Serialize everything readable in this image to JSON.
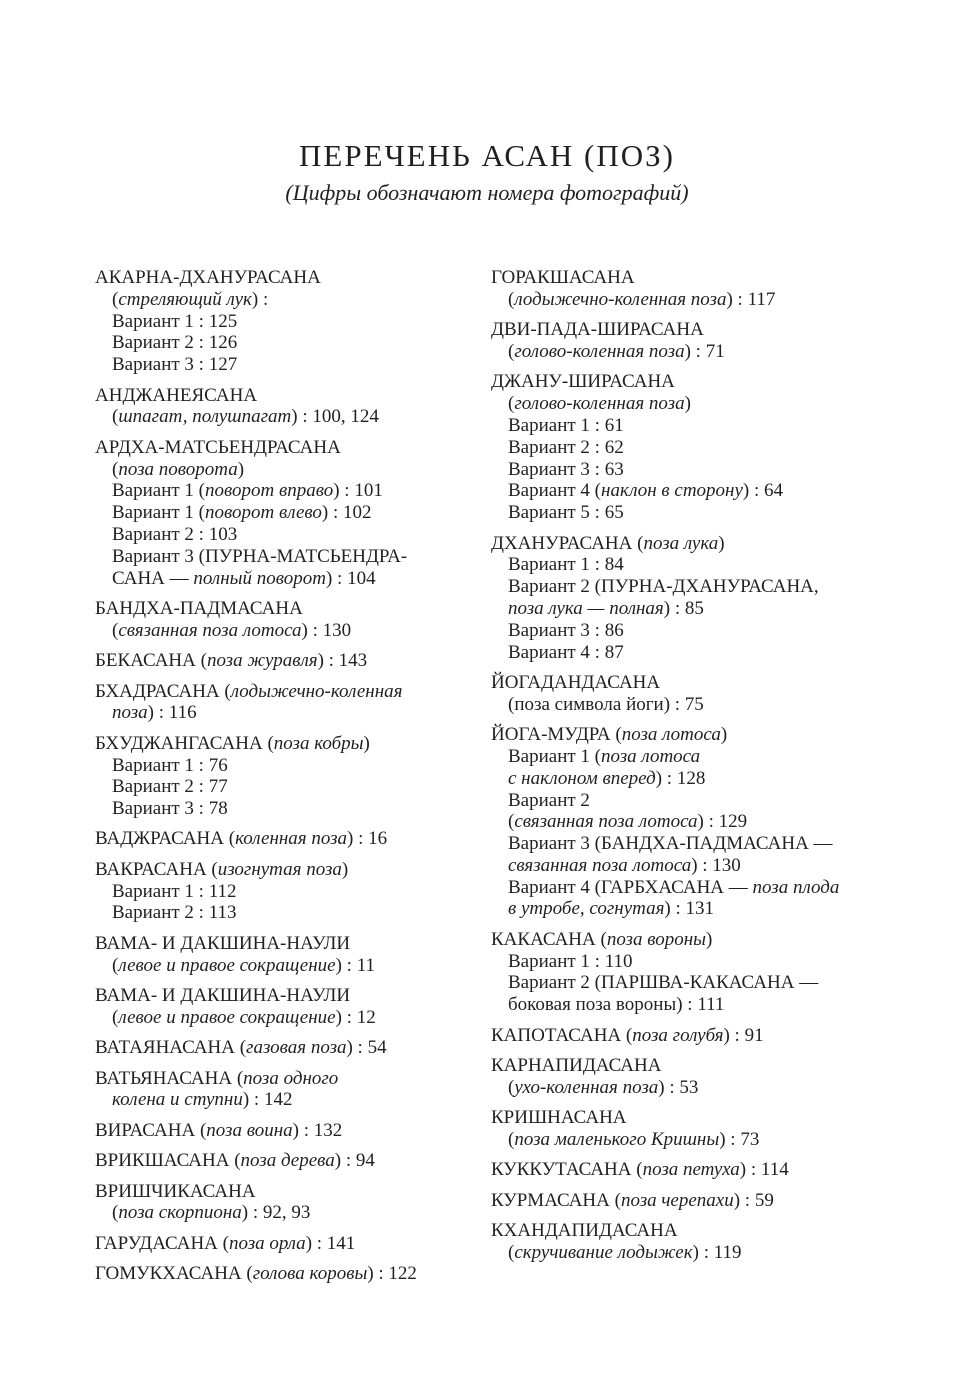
{
  "title": "ПЕРЕЧЕНЬ АСАН (ПОЗ)",
  "subtitle": "(Цифры обозначают номера фотографий)",
  "columns": [
    {
      "entries": [
        {
          "lines": [
            [
              "АКАРНА-ДХАНУРАСАНА"
            ],
            [
              "(",
              {
                "i": "стреляющий лук"
              },
              ") :"
            ],
            [
              "Вариант 1 : 125"
            ],
            [
              "Вариант 2 : 126"
            ],
            [
              "Вариант 3 : 127"
            ]
          ]
        },
        {
          "lines": [
            [
              "АНДЖАНЕЯСАНА"
            ],
            [
              "(",
              {
                "i": "шпагат, полушпагат"
              },
              ") : 100, 124"
            ]
          ]
        },
        {
          "lines": [
            [
              "АРДХА-МАТСЬЕНДРАСАНА"
            ],
            [
              "(",
              {
                "i": "поза поворота"
              },
              ")"
            ],
            [
              "Вариант 1 (",
              {
                "i": "поворот вправо"
              },
              ") : 101"
            ],
            [
              "Вариант 1 (",
              {
                "i": "поворот влево"
              },
              ") : 102"
            ],
            [
              "Вариант 2 : 103"
            ],
            [
              "Вариант 3 (ПУРНА-МАТСЬЕНДРА-"
            ],
            [
              "САНА — ",
              {
                "i": "полный поворот"
              },
              ")  : 104"
            ]
          ]
        },
        {
          "lines": [
            [
              "БАНДХА-ПАДМАСАНА"
            ],
            [
              "(",
              {
                "i": "связанная поза лотоса"
              },
              ") : 130"
            ]
          ]
        },
        {
          "lines": [
            [
              "БЕКАСАНА (",
              {
                "i": "поза журавля"
              },
              ") : 143"
            ]
          ]
        },
        {
          "lines": [
            [
              "БХАДРАСАНА (",
              {
                "i": "лодыжечно-коленная"
              }
            ],
            [
              {
                "i": "поза"
              },
              ") : 116"
            ]
          ]
        },
        {
          "lines": [
            [
              "БХУДЖАНГАСАНА (",
              {
                "i": "поза кобры"
              },
              ")"
            ],
            [
              "Вариант 1 : 76"
            ],
            [
              "Вариант 2 : 77"
            ],
            [
              "Вариант 3 : 78"
            ]
          ]
        },
        {
          "lines": [
            [
              "ВАДЖРАСАНА (",
              {
                "i": "коленная поза"
              },
              ") : 16"
            ]
          ]
        },
        {
          "lines": [
            [
              "ВАКРАСАНА (",
              {
                "i": "изогнутая поза"
              },
              ")"
            ],
            [
              "Вариант 1 : 112"
            ],
            [
              "Вариант 2 : 113"
            ]
          ]
        },
        {
          "lines": [
            [
              "ВАМА- И ДАКШИНА-НАУЛИ"
            ],
            [
              "(",
              {
                "i": "левое и правое сокращение"
              },
              ") : 11"
            ]
          ]
        },
        {
          "lines": [
            [
              "ВАМА- И ДАКШИНА-НАУЛИ"
            ],
            [
              "(",
              {
                "i": "левое и правое сокращение"
              },
              ") : 12"
            ]
          ]
        },
        {
          "lines": [
            [
              "ВАТАЯНАСАНА (",
              {
                "i": "газовая поза"
              },
              ") : 54"
            ]
          ]
        },
        {
          "lines": [
            [
              "ВАТЬЯНАСАНА (",
              {
                "i": "поза одного"
              }
            ],
            [
              {
                "i": "колена и ступни"
              },
              ") : 142"
            ]
          ]
        },
        {
          "lines": [
            [
              "ВИРАСАНА (",
              {
                "i": "поза воина"
              },
              ") : 132"
            ]
          ]
        },
        {
          "lines": [
            [
              "ВРИКШАСАНА (",
              {
                "i": "поза дерева"
              },
              ") : 94"
            ]
          ]
        },
        {
          "lines": [
            [
              "ВРИШЧИКАСАНА"
            ],
            [
              "(",
              {
                "i": "поза скорпиона"
              },
              ") : 92, 93"
            ]
          ]
        },
        {
          "lines": [
            [
              "ГАРУДАСАНА (",
              {
                "i": "поза орла"
              },
              ") : 141"
            ]
          ]
        },
        {
          "lines": [
            [
              "ГОМУКХАСАНА (",
              {
                "i": "голова коровы"
              },
              ") : 122"
            ]
          ]
        }
      ]
    },
    {
      "entries": [
        {
          "lines": [
            [
              "ГОРАКШАСАНА"
            ],
            [
              "(",
              {
                "i": "лодыжечно-коленная поза"
              },
              ") : 117"
            ]
          ]
        },
        {
          "lines": [
            [
              "ДВИ-ПАДА-ШИРАСАНА"
            ],
            [
              "(",
              {
                "i": "голово-коленная поза"
              },
              ") : 71"
            ]
          ]
        },
        {
          "lines": [
            [
              "ДЖАНУ-ШИРАСАНА"
            ],
            [
              "(",
              {
                "i": "голово-коленная поза"
              },
              ")"
            ],
            [
              "Вариант 1 : 61"
            ],
            [
              "Вариант 2 : 62"
            ],
            [
              "Вариант 3 : 63"
            ],
            [
              "Вариант 4 (",
              {
                "i": "наклон в сторону"
              },
              ") : 64"
            ],
            [
              "Вариант 5 : 65"
            ]
          ]
        },
        {
          "lines": [
            [
              "ДХАНУРАСАНА (",
              {
                "i": "поза лука"
              },
              ")"
            ],
            [
              "Вариант 1 : 84"
            ],
            [
              "Вариант 2 (ПУРНА-ДХАНУРАСАНА,"
            ],
            [
              {
                "i": "поза лука — полная"
              },
              ") : 85"
            ],
            [
              "Вариант 3 : 86"
            ],
            [
              "Вариант 4 : 87"
            ]
          ]
        },
        {
          "lines": [
            [
              "ЙОГАДАНДАСАНА"
            ],
            [
              "(поза символа йоги) : 75"
            ]
          ]
        },
        {
          "lines": [
            [
              "ЙОГА-МУДРА (",
              {
                "i": "поза лотоса"
              },
              ")"
            ],
            [
              "Вариант 1 (",
              {
                "i": "поза лотоса"
              }
            ],
            [
              {
                "i": "с наклоном вперед"
              },
              ") : 128"
            ],
            [
              "Вариант 2"
            ],
            [
              "(",
              {
                "i": "связанная поза лотоса"
              },
              ") : 129"
            ],
            [
              "Вариант 3 (БАНДХА-ПАДМАСАНА —"
            ],
            [
              {
                "i": "связанная поза лотоса"
              },
              ") : 130"
            ],
            [
              "Вариант 4 (ГАРБХАСАНА — ",
              {
                "i": "поза плода"
              }
            ],
            [
              {
                "i": "в утробе, согнутая"
              },
              ") : 131"
            ]
          ]
        },
        {
          "lines": [
            [
              "КАКАСАНА (",
              {
                "i": "поза вороны"
              },
              ")"
            ],
            [
              "Вариант 1 : 110"
            ],
            [
              "Вариант 2 (ПАРШВА-КАКАСАНА —"
            ],
            [
              "боковая поза вороны) : 111"
            ]
          ]
        },
        {
          "lines": [
            [
              "КАПОТАСАНА (",
              {
                "i": "поза голубя"
              },
              ") : 91"
            ]
          ]
        },
        {
          "lines": [
            [
              "КАРНАПИДАСАНА"
            ],
            [
              "(",
              {
                "i": "ухо-коленная поза"
              },
              ") : 53"
            ]
          ]
        },
        {
          "lines": [
            [
              "КРИШНАСАНА"
            ],
            [
              "(",
              {
                "i": "поза маленького Кришны"
              },
              ") : 73"
            ]
          ]
        },
        {
          "lines": [
            [
              "КУККУТАСАНА (",
              {
                "i": "поза петуха"
              },
              ") : 114"
            ]
          ]
        },
        {
          "lines": [
            [
              "КУРМАСАНА (",
              {
                "i": "поза черепахи"
              },
              ") : 59"
            ]
          ]
        },
        {
          "lines": [
            [
              "КХАНДАПИДАСАНА"
            ],
            [
              "(",
              {
                "i": "скручивание лодыжек"
              },
              ") : 119"
            ]
          ]
        }
      ]
    }
  ]
}
